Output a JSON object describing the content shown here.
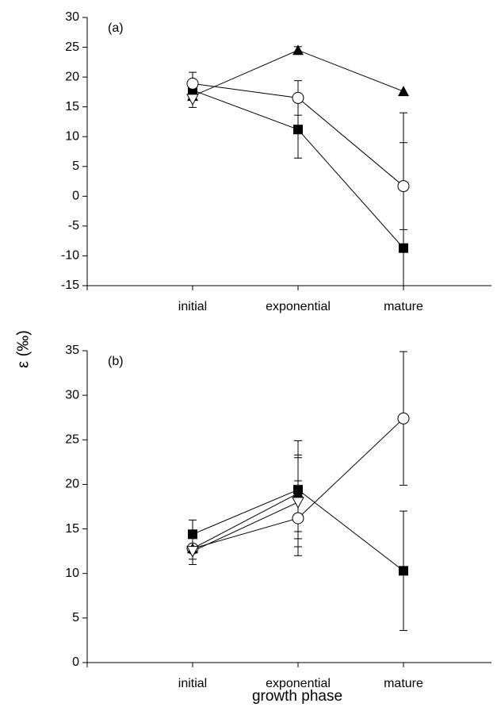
{
  "chart_data": [
    {
      "type": "line",
      "annotation": "(a)",
      "ylabel": "ε (‰)",
      "categories": [
        "initial",
        "exponential",
        "mature"
      ],
      "ylim": [
        -15,
        30
      ],
      "yticks": [
        -15,
        -10,
        -5,
        0,
        5,
        10,
        15,
        20,
        25,
        30
      ],
      "series": [
        {
          "marker": "square",
          "color": "#000000",
          "values": [
            17.8,
            11.2,
            -8.7
          ],
          "errors": [
            1.0,
            4.8,
            22.7
          ]
        },
        {
          "marker": "circle",
          "color": "#000000",
          "values": [
            18.9,
            16.5,
            1.7
          ],
          "errors": [
            1.9,
            2.9,
            7.3
          ]
        },
        {
          "marker": "triangle",
          "color": "#000000",
          "values": [
            16.8,
            24.5,
            17.6
          ],
          "errors": [
            null,
            0.6,
            null
          ]
        },
        {
          "marker": "triangle-down",
          "color": "#000000",
          "values": [
            16.3,
            null,
            null
          ],
          "errors": [
            1.4,
            null,
            null
          ]
        }
      ]
    },
    {
      "type": "line",
      "annotation": "(b)",
      "xlabel": "growth phase",
      "categories": [
        "initial",
        "exponential",
        "mature"
      ],
      "ylim": [
        0,
        35
      ],
      "yticks": [
        0,
        5,
        10,
        15,
        20,
        25,
        30,
        35
      ],
      "series": [
        {
          "marker": "square",
          "color": "#000000",
          "values": [
            14.4,
            19.4,
            10.3
          ],
          "errors": [
            1.6,
            5.5,
            6.7
          ]
        },
        {
          "marker": "circle",
          "color": "#000000",
          "values": [
            12.8,
            16.2,
            27.4
          ],
          "errors": [
            1.8,
            4.2,
            7.5
          ]
        },
        {
          "marker": "triangle",
          "color": "#000000",
          "values": [
            12.8,
            19.0,
            null
          ],
          "errors": [
            1.2,
            4.3,
            null
          ]
        },
        {
          "marker": "triangle-down",
          "color": "#000000",
          "values": [
            12.5,
            18.0,
            null
          ],
          "errors": [
            1.5,
            5.0,
            null
          ]
        }
      ]
    }
  ]
}
